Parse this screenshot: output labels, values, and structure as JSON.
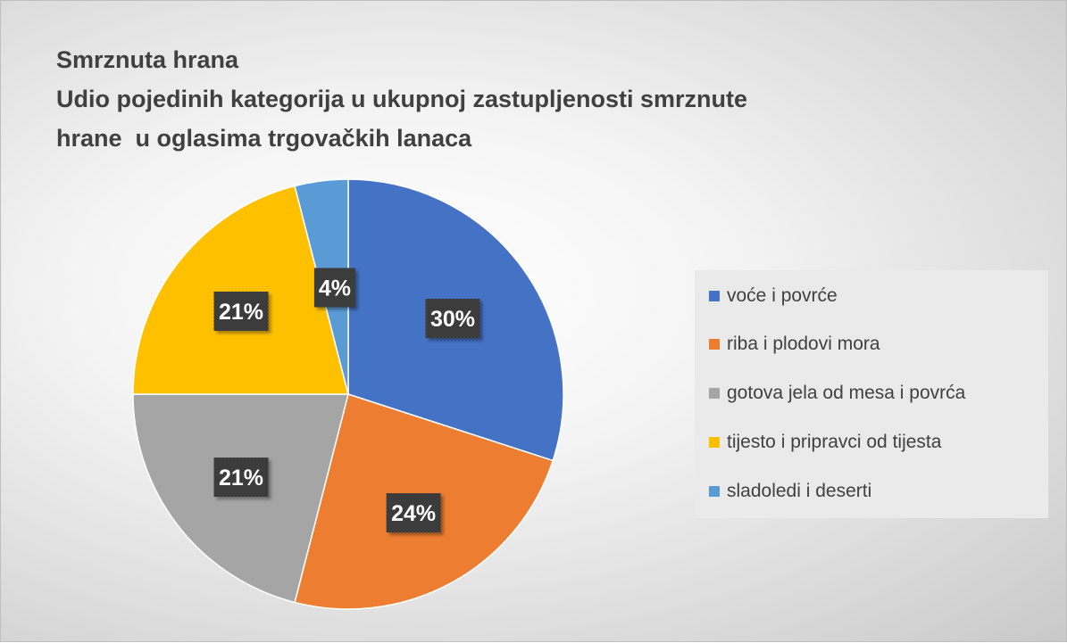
{
  "chart_data": {
    "type": "pie",
    "title": "Smrznuta hrana",
    "subtitle_lines": [
      "Udio pojedinih kategorija u ukupnoj zastupljenosti smrznute",
      "hrane  u oglasima trgovačkih lanaca"
    ],
    "categories": [
      "voće i povrće",
      "riba i plodovi mora",
      "gotova jela od mesa i povrća",
      "tijesto i pripravci od tijesta",
      "sladoledi i deserti"
    ],
    "values": [
      30,
      24,
      21,
      21,
      4
    ],
    "data_labels": [
      "30%",
      "24%",
      "21%",
      "21%",
      "4%"
    ],
    "colors": [
      "#4472c4",
      "#ed7d31",
      "#a5a5a5",
      "#ffc000",
      "#5b9bd5"
    ],
    "legend_position": "right"
  }
}
